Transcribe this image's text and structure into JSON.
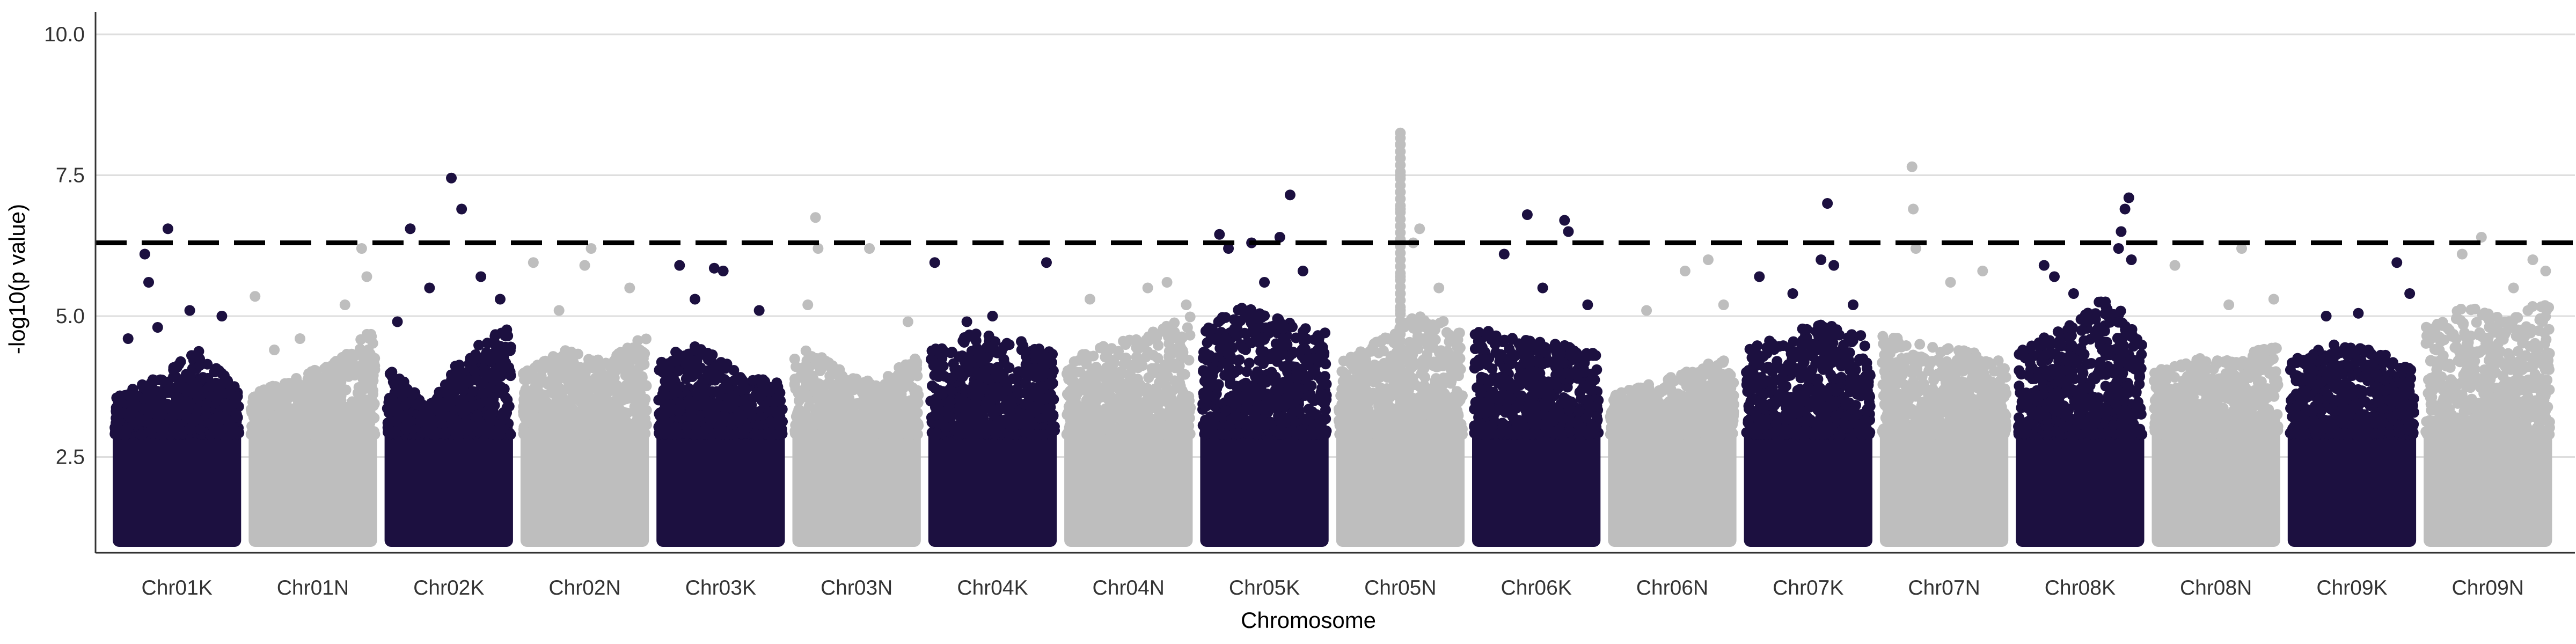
{
  "chart_data": {
    "type": "scatter",
    "subtype": "manhattan",
    "title": "",
    "xlabel": "Chromosome",
    "ylabel": "-log10(p value)",
    "ylim": [
      0.8,
      10.4
    ],
    "yticks": [
      "2.5",
      "5.0",
      "7.5",
      "10.0"
    ],
    "grid": {
      "horizontal_major": true,
      "vertical": false
    },
    "legend": "none",
    "threshold": 6.3,
    "threshold_style": "black dashed",
    "colors": {
      "odd": "#1c1040",
      "even": "#bebebe",
      "threshold": "#000000",
      "grid": "#dedede",
      "axis": "#333333"
    },
    "categories": [
      "Chr01K",
      "Chr01N",
      "Chr02K",
      "Chr02N",
      "Chr03K",
      "Chr03N",
      "Chr04K",
      "Chr04N",
      "Chr05K",
      "Chr05N",
      "Chr06K",
      "Chr06N",
      "Chr07K",
      "Chr07N",
      "Chr08K",
      "Chr08N",
      "Chr09K",
      "Chr09N"
    ],
    "series": [
      {
        "chromosome": "Chr01K",
        "dense_top": [
          3.6,
          3.9,
          4.4,
          3.7
        ],
        "peaks": [
          [
            0.25,
            6.1
          ],
          [
            0.28,
            5.6
          ],
          [
            0.43,
            6.55
          ],
          [
            0.6,
            5.1
          ],
          [
            0.85,
            5.0
          ],
          [
            0.12,
            4.6
          ],
          [
            0.35,
            4.8
          ]
        ]
      },
      {
        "chromosome": "Chr01N",
        "dense_top": [
          3.6,
          3.9,
          4.2,
          4.8
        ],
        "peaks": [
          [
            0.05,
            5.35
          ],
          [
            0.88,
            6.2
          ],
          [
            0.92,
            5.7
          ],
          [
            0.75,
            5.2
          ],
          [
            0.4,
            4.6
          ],
          [
            0.2,
            4.4
          ]
        ]
      },
      {
        "chromosome": "Chr02K",
        "dense_top": [
          4.2,
          3.4,
          4.5,
          4.8
        ],
        "peaks": [
          [
            0.2,
            6.55
          ],
          [
            0.52,
            7.45
          ],
          [
            0.6,
            6.9
          ],
          [
            0.75,
            5.7
          ],
          [
            0.35,
            5.5
          ],
          [
            0.9,
            5.3
          ],
          [
            0.1,
            4.9
          ]
        ]
      },
      {
        "chromosome": "Chr02N",
        "dense_top": [
          4.0,
          4.4,
          4.2,
          4.7
        ],
        "peaks": [
          [
            0.1,
            5.95
          ],
          [
            0.55,
            6.2
          ],
          [
            0.5,
            5.9
          ],
          [
            0.85,
            5.5
          ],
          [
            0.3,
            5.1
          ]
        ]
      },
      {
        "chromosome": "Chr03K",
        "dense_top": [
          4.3,
          4.5,
          4.0,
          3.8
        ],
        "peaks": [
          [
            0.18,
            5.9
          ],
          [
            0.45,
            5.85
          ],
          [
            0.52,
            5.8
          ],
          [
            0.8,
            5.1
          ],
          [
            0.3,
            5.3
          ]
        ]
      },
      {
        "chromosome": "Chr03N",
        "dense_top": [
          4.6,
          4.1,
          3.8,
          4.4
        ],
        "peaks": [
          [
            0.18,
            6.75
          ],
          [
            0.2,
            6.2
          ],
          [
            0.6,
            6.2
          ],
          [
            0.12,
            5.2
          ],
          [
            0.9,
            4.9
          ]
        ]
      },
      {
        "chromosome": "Chr04K",
        "dense_top": [
          4.4,
          4.7,
          4.6,
          4.4
        ],
        "peaks": [
          [
            0.05,
            5.95
          ],
          [
            0.92,
            5.95
          ],
          [
            0.5,
            5.0
          ],
          [
            0.3,
            4.9
          ]
        ]
      },
      {
        "chromosome": "Chr04N",
        "dense_top": [
          4.2,
          4.5,
          4.7,
          5.0
        ],
        "peaks": [
          [
            0.2,
            5.3
          ],
          [
            0.65,
            5.5
          ],
          [
            0.8,
            5.6
          ],
          [
            0.95,
            5.2
          ]
        ]
      },
      {
        "chromosome": "Chr05K",
        "dense_top": [
          4.8,
          5.2,
          4.9,
          4.7
        ],
        "peaks": [
          [
            0.15,
            6.45
          ],
          [
            0.22,
            6.2
          ],
          [
            0.4,
            6.3
          ],
          [
            0.62,
            6.4
          ],
          [
            0.7,
            7.15
          ],
          [
            0.8,
            5.8
          ],
          [
            0.5,
            5.6
          ]
        ]
      },
      {
        "chromosome": "Chr05N",
        "dense_top": [
          4.2,
          4.6,
          5.1,
          4.8
        ],
        "peaks": [
          [
            0.5,
            8.25
          ],
          [
            0.5,
            8.05
          ],
          [
            0.5,
            7.8
          ],
          [
            0.5,
            7.5
          ],
          [
            0.5,
            7.2
          ],
          [
            0.5,
            6.9
          ],
          [
            0.5,
            6.6
          ],
          [
            0.5,
            6.3
          ],
          [
            0.5,
            6.0
          ],
          [
            0.5,
            5.7
          ],
          [
            0.5,
            5.4
          ],
          [
            0.5,
            5.1
          ],
          [
            0.65,
            6.55
          ],
          [
            0.6,
            6.3
          ],
          [
            0.8,
            5.5
          ]
        ]
      },
      {
        "chromosome": "Chr06K",
        "dense_top": [
          4.8,
          4.6,
          4.5,
          4.4
        ],
        "peaks": [
          [
            0.25,
            6.1
          ],
          [
            0.43,
            6.8
          ],
          [
            0.72,
            6.7
          ],
          [
            0.75,
            6.5
          ],
          [
            0.55,
            5.5
          ],
          [
            0.9,
            5.2
          ]
        ]
      },
      {
        "chromosome": "Chr06N",
        "dense_top": [
          3.6,
          3.8,
          4.1,
          4.3
        ],
        "peaks": [
          [
            0.3,
            5.1
          ],
          [
            0.6,
            5.8
          ],
          [
            0.78,
            6.0
          ],
          [
            0.9,
            5.2
          ]
        ]
      },
      {
        "chromosome": "Chr07K",
        "dense_top": [
          4.4,
          4.7,
          5.0,
          4.6
        ],
        "peaks": [
          [
            0.12,
            5.7
          ],
          [
            0.38,
            5.4
          ],
          [
            0.6,
            6.0
          ],
          [
            0.65,
            7.0
          ],
          [
            0.7,
            5.9
          ],
          [
            0.85,
            5.2
          ]
        ]
      },
      {
        "chromosome": "Chr07N",
        "dense_top": [
          4.7,
          4.5,
          4.4,
          4.2
        ],
        "peaks": [
          [
            0.25,
            7.65
          ],
          [
            0.26,
            6.9
          ],
          [
            0.28,
            6.2
          ],
          [
            0.55,
            5.6
          ],
          [
            0.8,
            5.8
          ]
        ]
      },
      {
        "chromosome": "Chr08K",
        "dense_top": [
          4.4,
          4.8,
          5.3,
          5.0
        ],
        "peaks": [
          [
            0.22,
            5.9
          ],
          [
            0.3,
            5.7
          ],
          [
            0.8,
            6.2
          ],
          [
            0.82,
            6.5
          ],
          [
            0.85,
            6.9
          ],
          [
            0.88,
            7.1
          ],
          [
            0.9,
            6.0
          ],
          [
            0.45,
            5.4
          ]
        ]
      },
      {
        "chromosome": "Chr08N",
        "dense_top": [
          4.0,
          4.3,
          4.2,
          4.6
        ],
        "peaks": [
          [
            0.18,
            5.9
          ],
          [
            0.6,
            5.2
          ],
          [
            0.7,
            6.2
          ],
          [
            0.95,
            5.3
          ]
        ]
      },
      {
        "chromosome": "Chr09K",
        "dense_top": [
          4.2,
          4.5,
          4.4,
          4.1
        ],
        "peaks": [
          [
            0.3,
            5.0
          ],
          [
            0.55,
            5.05
          ],
          [
            0.85,
            5.95
          ],
          [
            0.95,
            5.4
          ]
        ]
      },
      {
        "chromosome": "Chr09N",
        "dense_top": [
          4.8,
          5.2,
          5.0,
          5.3
        ],
        "peaks": [
          [
            0.3,
            6.1
          ],
          [
            0.45,
            6.4
          ],
          [
            0.7,
            5.5
          ],
          [
            0.85,
            6.0
          ],
          [
            0.95,
            5.8
          ]
        ]
      }
    ]
  }
}
